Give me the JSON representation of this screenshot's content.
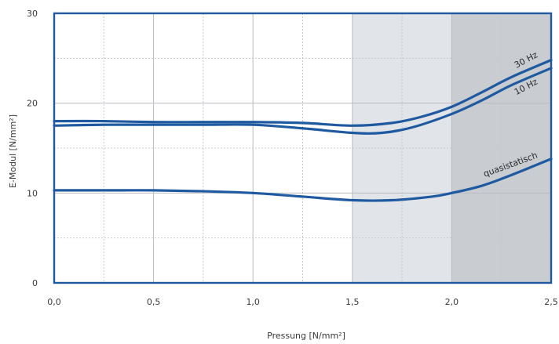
{
  "chart_data": {
    "type": "line",
    "xlabel": "Pressung [N/mm²]",
    "ylabel": "E-Modul [N/mm²]",
    "xlim": [
      0,
      2.5
    ],
    "ylim": [
      0,
      30
    ],
    "x_ticks": [
      "0,0",
      "0,5",
      "1,0",
      "1,5",
      "2,0",
      "2,5"
    ],
    "y_ticks": [
      "0",
      "10",
      "20",
      "30"
    ],
    "grid": true,
    "line_color": "#1f5aa0",
    "frame_color": "#1f5aa0",
    "shaded_regions": [
      {
        "x": [
          1.5,
          2.0
        ],
        "color": "#e1e4e8"
      },
      {
        "x": [
          2.0,
          2.5
        ],
        "color": "#c9ccd1"
      }
    ],
    "series": [
      {
        "name": "30 Hz",
        "x": [
          0,
          0.25,
          0.5,
          0.75,
          1.0,
          1.25,
          1.5,
          1.7,
          1.85,
          2.0,
          2.15,
          2.3,
          2.5
        ],
        "y": [
          18.0,
          18.0,
          17.9,
          17.9,
          17.9,
          17.8,
          17.5,
          17.8,
          18.5,
          19.6,
          21.2,
          22.9,
          24.8
        ]
      },
      {
        "name": "10 Hz",
        "x": [
          0,
          0.25,
          0.5,
          0.75,
          1.0,
          1.25,
          1.5,
          1.65,
          1.8,
          2.0,
          2.15,
          2.3,
          2.5
        ],
        "y": [
          17.5,
          17.6,
          17.6,
          17.6,
          17.6,
          17.2,
          16.7,
          16.7,
          17.3,
          18.8,
          20.3,
          22.0,
          23.9
        ]
      },
      {
        "name": "quasistatisch",
        "x": [
          0,
          0.25,
          0.5,
          0.75,
          1.0,
          1.25,
          1.5,
          1.7,
          1.9,
          2.0,
          2.15,
          2.3,
          2.5
        ],
        "y": [
          10.3,
          10.3,
          10.3,
          10.2,
          10.0,
          9.6,
          9.2,
          9.2,
          9.6,
          10.0,
          10.8,
          12.0,
          13.8
        ]
      }
    ]
  }
}
